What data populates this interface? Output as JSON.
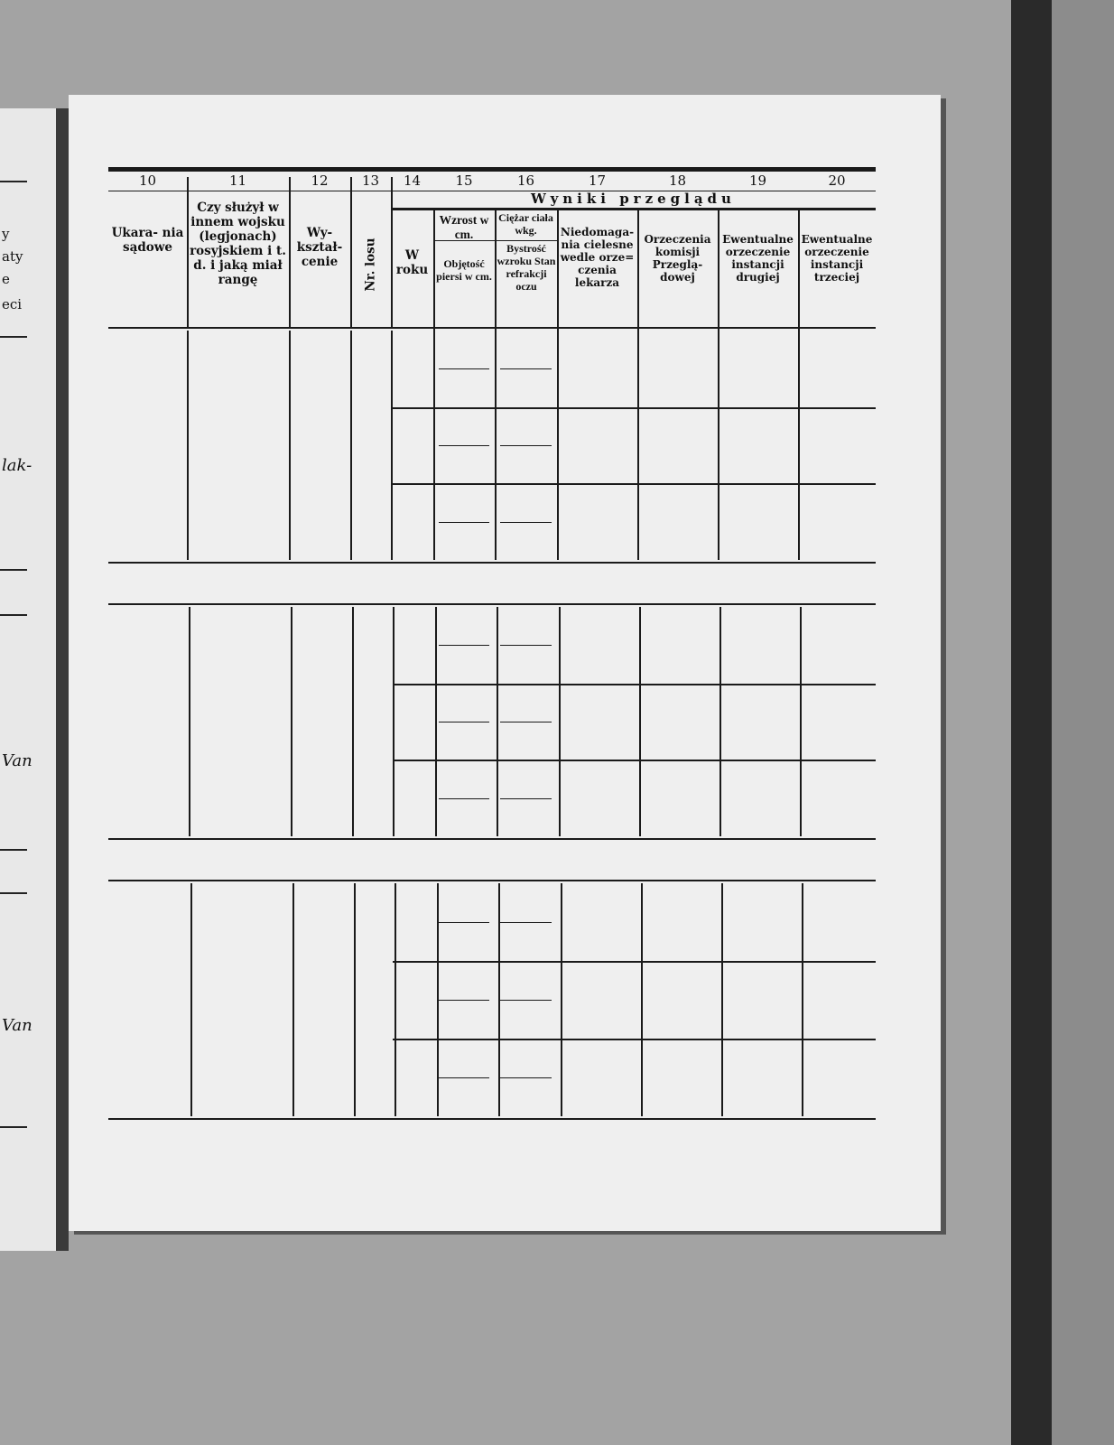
{
  "left_page": {
    "fragments": [
      "y",
      "aty",
      "e",
      "eci"
    ],
    "handwriting": [
      "lak-",
      "Van",
      "Van"
    ]
  },
  "table": {
    "section_title": "Wyniki przeglądu",
    "columns": [
      {
        "number": "10",
        "header": "Ukara- nia sądowe"
      },
      {
        "number": "11",
        "header": "Czy służył w innem wojsku (legjonach) rosyjskiem i t. d. i jaką miał rangę"
      },
      {
        "number": "12",
        "header": "Wy- kształ- cenie"
      },
      {
        "number": "13",
        "header": "Nr. losu"
      },
      {
        "number": "14",
        "header": "W roku"
      },
      {
        "number": "15",
        "header": "Wzrost w cm.",
        "subheader": "Objętość piersi w cm."
      },
      {
        "number": "16",
        "header": "Ciężar ciała wkg.",
        "subheader": "Bystrość wzroku Stan refrakcji oczu"
      },
      {
        "number": "17",
        "header": "Niedomaga- nia cielesne wedle orze= czenia lekarza"
      },
      {
        "number": "18",
        "header": "Orzeczenia komisji Przeglą- dowej"
      },
      {
        "number": "19",
        "header": "Ewentualne orzeczenie instancji drugiej"
      },
      {
        "number": "20",
        "header": "Ewentualne orzeczenie instancji trzeciej"
      }
    ],
    "record_blocks": 3
  }
}
